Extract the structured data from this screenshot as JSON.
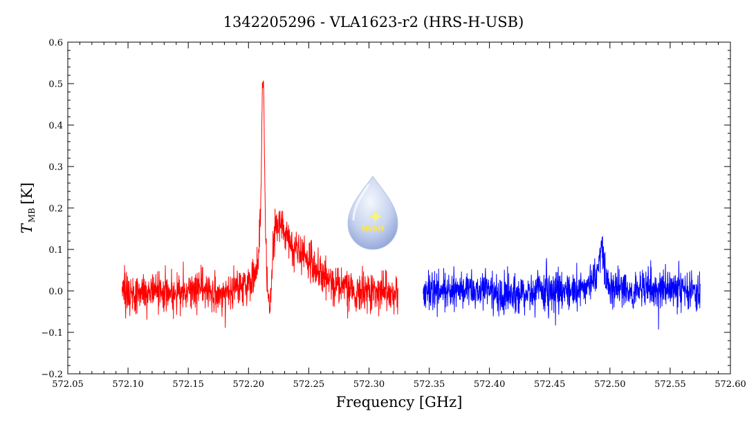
{
  "chart_data": {
    "type": "line",
    "title": "1342205296 - VLA1623-r2 (HRS-H-USB)",
    "xlabel": "Frequency [GHz]",
    "ylabel_main": "T",
    "ylabel_sub": "MB",
    "ylabel_unit": "[K]",
    "xlim": [
      572.05,
      572.6
    ],
    "ylim": [
      -0.2,
      0.6
    ],
    "x_ticks": [
      572.05,
      572.1,
      572.15,
      572.2,
      572.25,
      572.3,
      572.35,
      572.4,
      572.45,
      572.5,
      572.55,
      572.6
    ],
    "x_tick_labels": [
      "572.05",
      "572.10",
      "572.15",
      "572.20",
      "572.25",
      "572.30",
      "572.35",
      "572.40",
      "572.45",
      "572.50",
      "572.55",
      "572.60"
    ],
    "y_ticks": [
      -0.2,
      -0.1,
      0.0,
      0.1,
      0.2,
      0.3,
      0.4,
      0.5,
      0.6
    ],
    "y_tick_labels": [
      "−0.2",
      "−0.1",
      "0.0",
      "0.1",
      "0.2",
      "0.3",
      "0.4",
      "0.5",
      "0.6"
    ],
    "grid": false,
    "series": [
      {
        "color": "#ff0000",
        "x": [
          572.095,
          572.105,
          572.115,
          572.125,
          572.135,
          572.145,
          572.155,
          572.165,
          572.175,
          572.185,
          572.195,
          572.203,
          572.207,
          572.209,
          572.2105,
          572.2115,
          572.2125,
          572.2135,
          572.2145,
          572.216,
          572.218,
          572.219,
          572.2195,
          572.2205,
          572.222,
          572.225,
          572.23,
          572.235,
          572.24,
          572.25,
          572.26,
          572.27,
          572.28,
          572.29,
          572.3,
          572.31,
          572.318,
          572.324
        ],
        "y": [
          0.0,
          -0.01,
          0.0,
          0.0,
          -0.01,
          0.0,
          0.01,
          0.0,
          -0.01,
          0.0,
          0.01,
          0.03,
          0.06,
          0.1,
          0.24,
          0.5,
          0.51,
          0.28,
          0.08,
          0.0,
          -0.03,
          0.0,
          0.05,
          0.12,
          0.16,
          0.16,
          0.14,
          0.11,
          0.1,
          0.07,
          0.04,
          0.02,
          0.01,
          0.0,
          0.0,
          -0.01,
          0.0,
          -0.01
        ],
        "noise": 0.03
      },
      {
        "color": "#0000ff",
        "x": [
          572.345,
          572.36,
          572.38,
          572.4,
          572.42,
          572.44,
          572.46,
          572.48,
          572.485,
          572.489,
          572.4915,
          572.4935,
          572.4955,
          572.4975,
          572.5,
          572.505,
          572.52,
          572.54,
          572.56,
          572.575
        ],
        "y": [
          0.0,
          0.0,
          0.01,
          0.0,
          -0.01,
          0.0,
          0.0,
          0.01,
          0.02,
          0.04,
          0.08,
          0.11,
          0.06,
          0.03,
          0.01,
          0.0,
          0.0,
          0.01,
          0.0,
          0.0
        ],
        "noise": 0.03
      }
    ]
  },
  "logo": {
    "text": "WISH",
    "icon": "water-drop-star-icon",
    "color_light": "#dfe6f6",
    "color_dark": "#8ea3d6"
  }
}
